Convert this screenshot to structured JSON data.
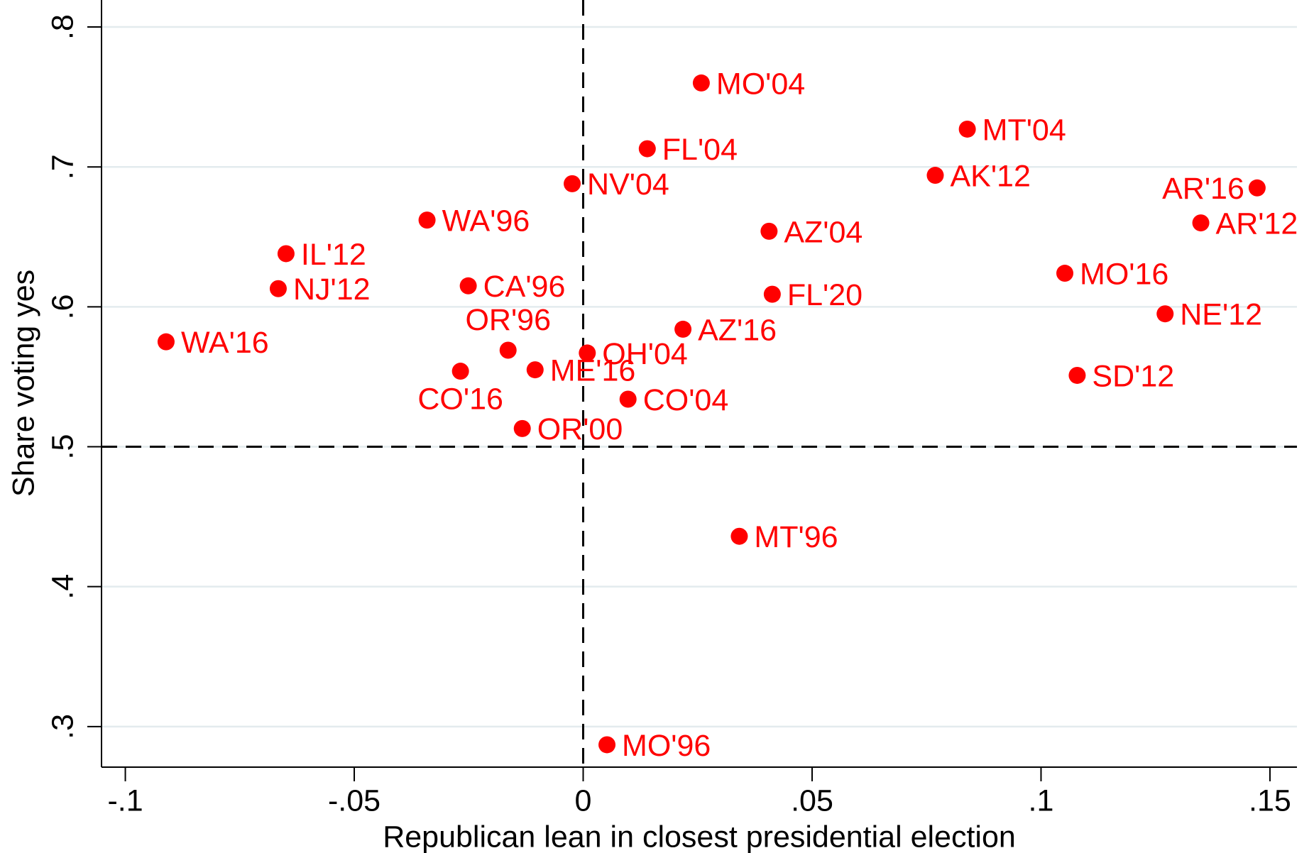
{
  "chart_data": {
    "type": "scatter",
    "x_label": "Republican lean in closest presidential election",
    "y_label": "Share voting yes",
    "xlim": [
      -0.1052,
      0.1559
    ],
    "ylim": [
      0.271,
      0.8193
    ],
    "xticks": [
      {
        "value": -0.1,
        "label": "-.1"
      },
      {
        "value": -0.05,
        "label": "-.05"
      },
      0,
      {
        "value": 0.05,
        "label": ".05"
      },
      {
        "value": 0.1,
        "label": ".1"
      },
      {
        "value": 0.15,
        "label": ".15"
      }
    ],
    "yticks": [
      {
        "value": 0.3,
        "label": ".3"
      },
      {
        "value": 0.4,
        "label": ".4"
      },
      {
        "value": 0.5,
        "label": ".5"
      },
      {
        "value": 0.6,
        "label": ".6"
      },
      {
        "value": 0.7,
        "label": ".7"
      },
      {
        "value": 0.8,
        "label": ".8"
      }
    ],
    "grid": true,
    "reference_x": 0,
    "reference_y": 0.5,
    "color": "#ff0000",
    "labels": [
      "MO'04",
      "MT'04",
      "FL'04",
      "NV'04",
      "AK'12",
      "AR'16",
      "AR'12",
      "WA'96",
      "AZ'04",
      "IL'12",
      "NJ'12",
      "CA'96",
      "MO'16",
      "FL'20",
      "NE'12",
      "WA'16",
      "AZ'16",
      "OR'96",
      "OH'04",
      "CO'16",
      "ME'16",
      "SD'12",
      "CO'04",
      "OR'00",
      "MT'96",
      "MO'96"
    ],
    "x": [
      0.0258,
      0.0839,
      0.014,
      -0.0024,
      0.0769,
      0.1472,
      0.1349,
      -0.0341,
      0.0406,
      -0.0649,
      -0.0666,
      -0.0251,
      0.1052,
      0.0413,
      0.1271,
      -0.0911,
      0.0218,
      -0.0164,
      0.0009,
      -0.0268,
      -0.0105,
      0.1079,
      0.0098,
      -0.0133,
      0.0341,
      0.0052
    ],
    "values": [
      0.76,
      0.727,
      0.713,
      0.688,
      0.694,
      0.685,
      0.66,
      0.662,
      0.654,
      0.638,
      0.613,
      0.615,
      0.624,
      0.609,
      0.595,
      0.575,
      0.584,
      0.569,
      0.567,
      0.554,
      0.555,
      0.551,
      0.534,
      0.513,
      0.436,
      0.287
    ]
  }
}
